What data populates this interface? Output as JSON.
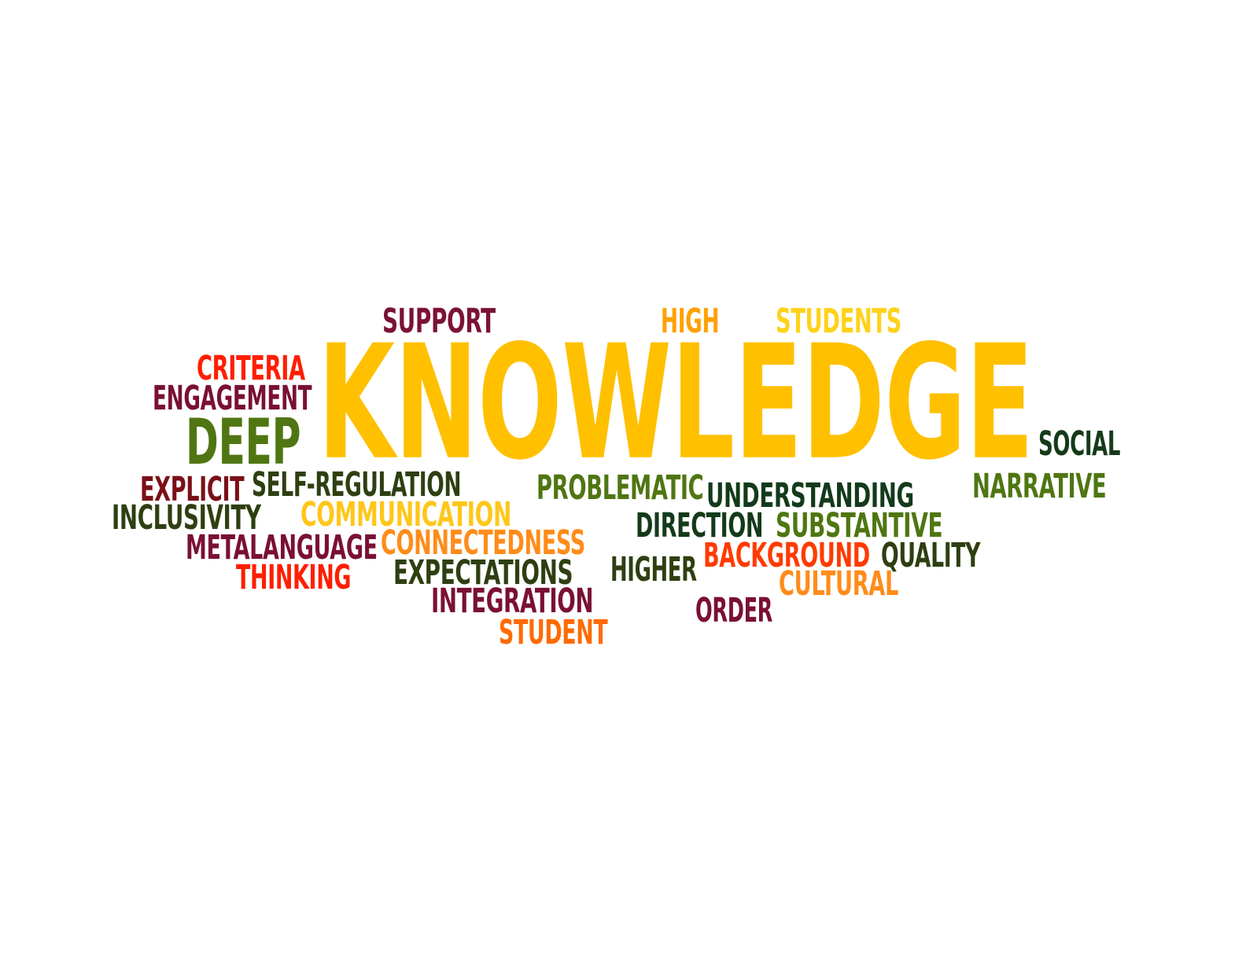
{
  "words": [
    {
      "text": "KNOWLEDGE",
      "color": "#FFC000"
    },
    {
      "text": "SUPPORT",
      "color": "#7B1237"
    },
    {
      "text": "HIGH",
      "color": "#FFA100"
    },
    {
      "text": "STUDENTS",
      "color": "#FFD21A"
    },
    {
      "text": "CRITERIA",
      "color": "#FF1E00"
    },
    {
      "text": "ENGAGEMENT",
      "color": "#7A1033"
    },
    {
      "text": "DEEP",
      "color": "#4F7612"
    },
    {
      "text": "SOCIAL",
      "color": "#143A1A"
    },
    {
      "text": "NARRATIVE",
      "color": "#4F7612"
    },
    {
      "text": "EXPLICIT",
      "color": "#7A1018"
    },
    {
      "text": "SELF-REGULATION",
      "color": "#2E3F11"
    },
    {
      "text": "PROBLEMATIC",
      "color": "#4F7612"
    },
    {
      "text": "UNDERSTANDING",
      "color": "#133A1A"
    },
    {
      "text": "INCLUSIVITY",
      "color": "#2E3F11"
    },
    {
      "text": "COMMUNICATION",
      "color": "#FFC61A"
    },
    {
      "text": "DIRECTION",
      "color": "#143A1A"
    },
    {
      "text": "SUBSTANTIVE",
      "color": "#4F7612"
    },
    {
      "text": "METALANGUAGE",
      "color": "#7A1033"
    },
    {
      "text": "CONNECTEDNESS",
      "color": "#FF8C1A"
    },
    {
      "text": "BACKGROUND",
      "color": "#FF3A00"
    },
    {
      "text": "QUALITY",
      "color": "#2E3F11"
    },
    {
      "text": "THINKING",
      "color": "#FF1E00"
    },
    {
      "text": "EXPECTATIONS",
      "color": "#2E3F11"
    },
    {
      "text": "HIGHER",
      "color": "#2E3F11"
    },
    {
      "text": "CULTURAL",
      "color": "#FF8C1A"
    },
    {
      "text": "INTEGRATION",
      "color": "#7A1033"
    },
    {
      "text": "ORDER",
      "color": "#7A1033"
    },
    {
      "text": "STUDENT",
      "color": "#FF6A00"
    }
  ]
}
